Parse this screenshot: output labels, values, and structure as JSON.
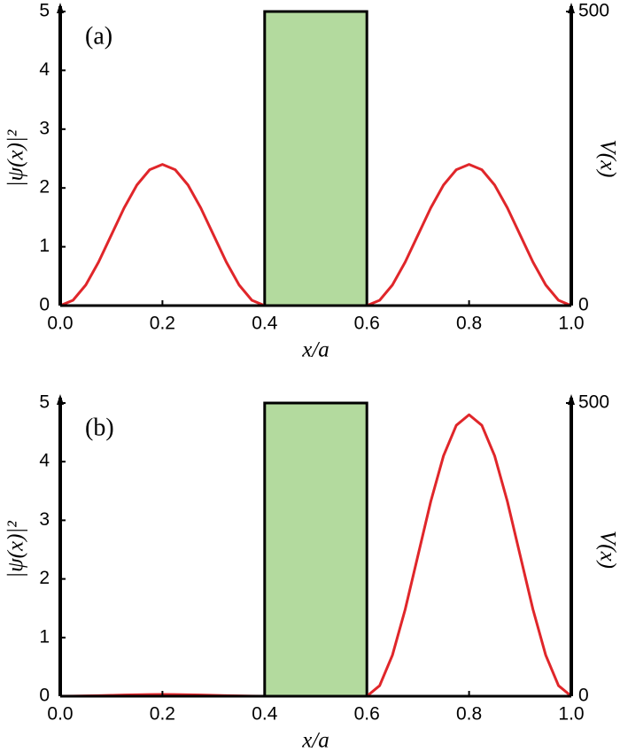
{
  "chart_data": [
    {
      "type": "line",
      "annotation": "(a)",
      "xlabel": "x/a",
      "ylabel": "|ψ(x)|²",
      "y2label": "V(x)",
      "x": [
        0,
        0.025,
        0.05,
        0.075,
        0.1,
        0.125,
        0.15,
        0.175,
        0.2,
        0.225,
        0.25,
        0.275,
        0.3,
        0.325,
        0.35,
        0.375,
        0.4,
        0.425,
        0.45,
        0.475,
        0.5,
        0.525,
        0.55,
        0.575,
        0.6,
        0.625,
        0.65,
        0.675,
        0.7,
        0.725,
        0.75,
        0.775,
        0.8,
        0.825,
        0.85,
        0.875,
        0.9,
        0.925,
        0.95,
        0.975,
        1
      ],
      "series": [
        {
          "color": "#e0262a",
          "values": [
            0,
            0.09,
            0.35,
            0.74,
            1.2,
            1.66,
            2.05,
            2.31,
            2.4,
            2.31,
            2.05,
            1.66,
            1.2,
            0.74,
            0.35,
            0.09,
            0,
            0,
            0,
            0,
            0,
            0,
            0,
            0,
            0,
            0.09,
            0.35,
            0.74,
            1.2,
            1.66,
            2.05,
            2.31,
            2.4,
            2.31,
            2.05,
            1.66,
            1.2,
            0.74,
            0.35,
            0.09,
            0
          ]
        }
      ],
      "barrier": {
        "xrange": [
          0.4,
          0.6
        ],
        "value": 500,
        "color": "#b3da9e"
      },
      "xlim": [
        0,
        1
      ],
      "xticks": [
        {
          "value": 0,
          "label": "0.0"
        },
        {
          "value": 0.2,
          "label": "0.2"
        },
        {
          "value": 0.4,
          "label": "0.4"
        },
        {
          "value": 0.6,
          "label": "0.6"
        },
        {
          "value": 0.8,
          "label": "0.8"
        },
        {
          "value": 1,
          "label": "1.0"
        }
      ],
      "ylim": [
        0,
        5
      ],
      "yticks": [
        0,
        1,
        2,
        3,
        4,
        5
      ],
      "y2lim": [
        0,
        500
      ],
      "y2ticks": [
        0,
        500
      ]
    },
    {
      "type": "line",
      "annotation": "(b)",
      "xlabel": "x/a",
      "ylabel": "|ψ(x)|²",
      "y2label": "V(x)",
      "x": [
        0,
        0.025,
        0.05,
        0.075,
        0.1,
        0.125,
        0.15,
        0.175,
        0.2,
        0.225,
        0.25,
        0.275,
        0.3,
        0.325,
        0.35,
        0.375,
        0.4,
        0.425,
        0.45,
        0.475,
        0.5,
        0.525,
        0.55,
        0.575,
        0.6,
        0.625,
        0.65,
        0.675,
        0.7,
        0.725,
        0.75,
        0.775,
        0.8,
        0.825,
        0.85,
        0.875,
        0.9,
        0.925,
        0.95,
        0.975,
        1
      ],
      "series": [
        {
          "color": "#e0262a",
          "values": [
            0,
            0.001,
            0.005,
            0.01,
            0.015,
            0.02,
            0.025,
            0.028,
            0.03,
            0.028,
            0.025,
            0.02,
            0.015,
            0.01,
            0.005,
            0.001,
            0,
            0,
            0,
            0,
            0,
            0,
            0,
            0,
            0,
            0.18,
            0.7,
            1.48,
            2.4,
            3.32,
            4.1,
            4.62,
            4.8,
            4.62,
            4.1,
            3.32,
            2.4,
            1.48,
            0.7,
            0.18,
            0
          ]
        }
      ],
      "barrier": {
        "xrange": [
          0.4,
          0.6
        ],
        "value": 500,
        "color": "#b3da9e"
      },
      "xlim": [
        0,
        1
      ],
      "xticks": [
        {
          "value": 0,
          "label": "0.0"
        },
        {
          "value": 0.2,
          "label": "0.2"
        },
        {
          "value": 0.4,
          "label": "0.4"
        },
        {
          "value": 0.6,
          "label": "0.6"
        },
        {
          "value": 0.8,
          "label": "0.8"
        },
        {
          "value": 1,
          "label": "1.0"
        }
      ],
      "ylim": [
        0,
        5
      ],
      "yticks": [
        0,
        1,
        2,
        3,
        4,
        5
      ],
      "y2lim": [
        0,
        500
      ],
      "y2ticks": [
        0,
        500
      ]
    }
  ]
}
